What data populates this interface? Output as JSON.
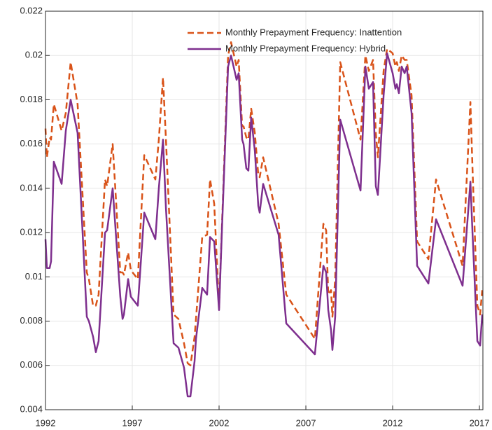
{
  "chart_data": {
    "type": "line",
    "x": [
      1992.0,
      1992.08,
      1992.24,
      1992.32,
      1992.48,
      1992.93,
      1993.17,
      1993.45,
      1993.85,
      1994.38,
      1994.5,
      1994.74,
      1994.9,
      1995.06,
      1995.43,
      1995.55,
      1995.87,
      1996.31,
      1996.44,
      1996.52,
      1996.76,
      1996.92,
      1997.32,
      1997.69,
      1998.33,
      1998.53,
      1998.77,
      1998.94,
      1999.38,
      1999.66,
      1999.98,
      2000.19,
      2000.35,
      2000.59,
      2000.67,
      2001.03,
      2001.31,
      2001.48,
      2001.72,
      2002.0,
      2002.16,
      2002.52,
      2002.69,
      2003.01,
      2003.13,
      2003.33,
      2003.41,
      2003.57,
      2003.69,
      2003.85,
      2004.06,
      2004.26,
      2004.34,
      2004.54,
      2005.43,
      2005.87,
      2007.52,
      2008.01,
      2008.17,
      2008.29,
      2008.45,
      2008.53,
      2008.69,
      2008.98,
      2010.15,
      2010.43,
      2010.63,
      2010.87,
      2011.03,
      2011.15,
      2011.48,
      2011.68,
      2012.0,
      2012.16,
      2012.24,
      2012.36,
      2012.52,
      2012.69,
      2012.81,
      2013.09,
      2013.41,
      2014.06,
      2014.5,
      2016.03,
      2016.48,
      2016.6,
      2016.88,
      2017.04,
      2017.16
    ],
    "series": [
      {
        "name": "Monthly Prepayment Frequency: Inattention",
        "color": "#D95319",
        "dashed": true,
        "values": [
          0.0167,
          0.0154,
          0.0163,
          0.0162,
          0.0178,
          0.0166,
          0.0174,
          0.0197,
          0.0178,
          0.0102,
          0.0099,
          0.0087,
          0.0087,
          0.0092,
          0.0144,
          0.0141,
          0.016,
          0.0102,
          0.0102,
          0.0101,
          0.0111,
          0.0103,
          0.0099,
          0.0155,
          0.0144,
          0.0162,
          0.019,
          0.0162,
          0.0083,
          0.0081,
          0.007,
          0.0061,
          0.006,
          0.0073,
          0.0081,
          0.0118,
          0.0119,
          0.0144,
          0.0133,
          0.0086,
          0.0122,
          0.02,
          0.0206,
          0.0195,
          0.0198,
          0.0168,
          0.0168,
          0.0163,
          0.0162,
          0.0176,
          0.0165,
          0.0146,
          0.0145,
          0.0154,
          0.0124,
          0.0092,
          0.0072,
          0.0124,
          0.0121,
          0.0092,
          0.0094,
          0.0082,
          0.0099,
          0.0197,
          0.0162,
          0.02,
          0.0193,
          0.0198,
          0.0165,
          0.0154,
          0.0193,
          0.0203,
          0.0201,
          0.0195,
          0.0197,
          0.0193,
          0.02,
          0.0198,
          0.0198,
          0.0182,
          0.0116,
          0.0108,
          0.0144,
          0.0105,
          0.0179,
          0.0149,
          0.0087,
          0.0083,
          0.0094
        ]
      },
      {
        "name": "Monthly Prepayment Frequency: Hybrid",
        "color": "#7E2F8E",
        "dashed": false,
        "values": [
          0.0117,
          0.0104,
          0.0104,
          0.0107,
          0.0152,
          0.0142,
          0.0166,
          0.018,
          0.0165,
          0.0082,
          0.008,
          0.0073,
          0.0066,
          0.0071,
          0.012,
          0.0121,
          0.014,
          0.0091,
          0.0081,
          0.0083,
          0.0099,
          0.0091,
          0.0087,
          0.0129,
          0.0117,
          0.014,
          0.0162,
          0.0131,
          0.007,
          0.0068,
          0.0059,
          0.0046,
          0.0046,
          0.0062,
          0.0072,
          0.0095,
          0.0092,
          0.0118,
          0.0116,
          0.0085,
          0.012,
          0.0195,
          0.02,
          0.0189,
          0.0192,
          0.0162,
          0.016,
          0.0149,
          0.0148,
          0.0172,
          0.0157,
          0.0132,
          0.0129,
          0.0142,
          0.0119,
          0.0079,
          0.0065,
          0.0105,
          0.0102,
          0.0085,
          0.0076,
          0.0067,
          0.0082,
          0.0171,
          0.0139,
          0.0195,
          0.0185,
          0.0188,
          0.0141,
          0.0137,
          0.0182,
          0.0201,
          0.0192,
          0.0185,
          0.0187,
          0.0183,
          0.0195,
          0.0192,
          0.0195,
          0.0174,
          0.0105,
          0.0097,
          0.0126,
          0.0096,
          0.0143,
          0.012,
          0.0071,
          0.0069,
          0.0083
        ]
      }
    ],
    "xlim": [
      1992,
      2017.2
    ],
    "xticks": [
      1992,
      1997,
      2002,
      2007,
      2012,
      2017
    ],
    "ylim": [
      0.004,
      0.022
    ],
    "yticks": [
      0.004,
      0.006,
      0.008,
      0.01,
      0.012,
      0.014,
      0.016,
      0.018,
      0.02,
      0.022
    ],
    "grid": true,
    "legend": "upper right"
  }
}
